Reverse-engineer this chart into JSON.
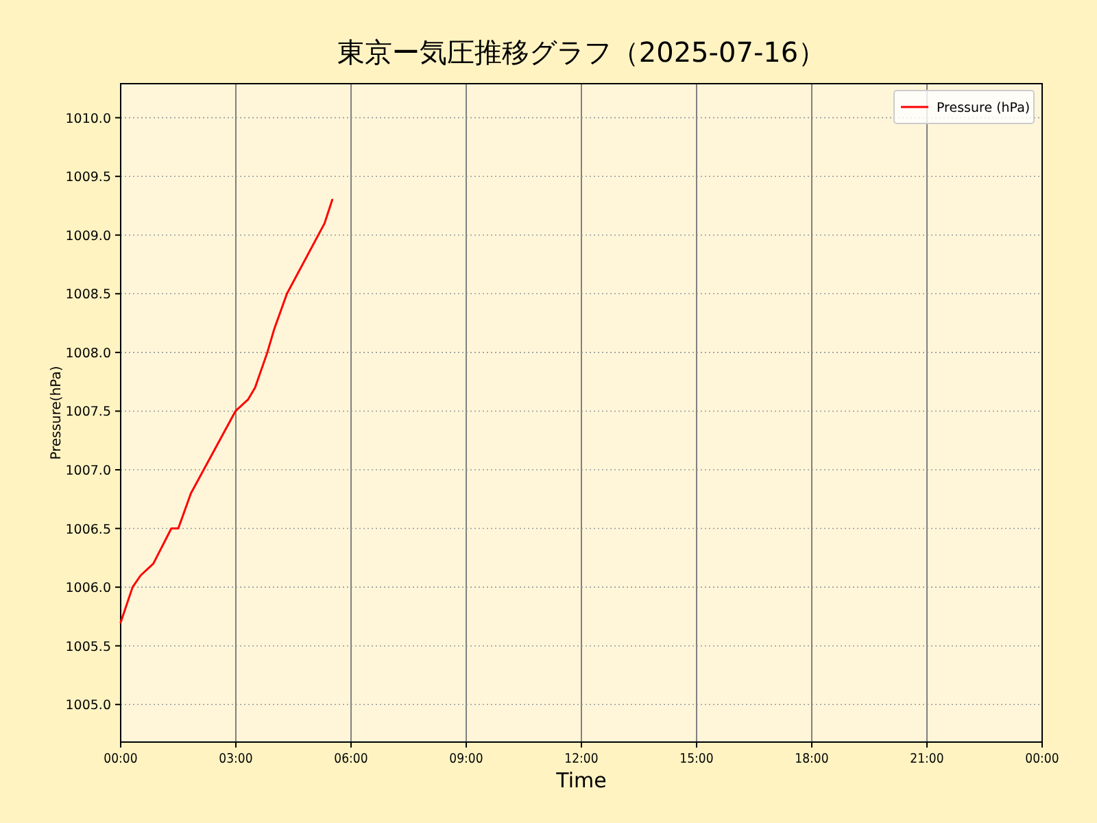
{
  "chart_data": {
    "type": "line",
    "title": "東京ー気圧推移グラフ（2025-07-16）",
    "xlabel": "Time",
    "ylabel": "Pressure(hPa)",
    "x": [
      0,
      0.31,
      0.52,
      0.85,
      1.32,
      1.5,
      1.83,
      2.99,
      3.32,
      3.5,
      3.82,
      4.0,
      4.33,
      5.31,
      5.51
    ],
    "series": [
      {
        "name": "Pressure (hPa)",
        "color": "#ff0000",
        "values": [
          1005.7,
          1006.0,
          1006.1,
          1006.2,
          1006.5,
          1006.5,
          1006.8,
          1007.5,
          1007.6,
          1007.7,
          1008.0,
          1008.2,
          1008.5,
          1009.1,
          1009.3
        ]
      }
    ],
    "xlim": [
      0,
      24
    ],
    "xticks": [
      {
        "value": 0,
        "label": "00:00"
      },
      {
        "value": 3,
        "label": "03:00"
      },
      {
        "value": 6,
        "label": "06:00"
      },
      {
        "value": 9,
        "label": "09:00"
      },
      {
        "value": 12,
        "label": "12:00"
      },
      {
        "value": 15,
        "label": "15:00"
      },
      {
        "value": 18,
        "label": "18:00"
      },
      {
        "value": 21,
        "label": "21:00"
      },
      {
        "value": 24,
        "label": "00:00"
      }
    ],
    "ylim": [
      1004.68,
      1010.29
    ],
    "yticks": [
      {
        "value": 1005,
        "label": "1005.0"
      },
      {
        "value": 1005.5,
        "label": "1005.5"
      },
      {
        "value": 1006,
        "label": "1006.0"
      },
      {
        "value": 1006.5,
        "label": "1006.5"
      },
      {
        "value": 1007,
        "label": "1007.0"
      },
      {
        "value": 1007.5,
        "label": "1007.5"
      },
      {
        "value": 1008,
        "label": "1008.0"
      },
      {
        "value": 1008.5,
        "label": "1008.5"
      },
      {
        "value": 1009,
        "label": "1009.0"
      },
      {
        "value": 1009.5,
        "label": "1009.5"
      },
      {
        "value": 1010,
        "label": "1010.0"
      }
    ],
    "grid": true,
    "legend": "top right",
    "line_style": "solid"
  }
}
